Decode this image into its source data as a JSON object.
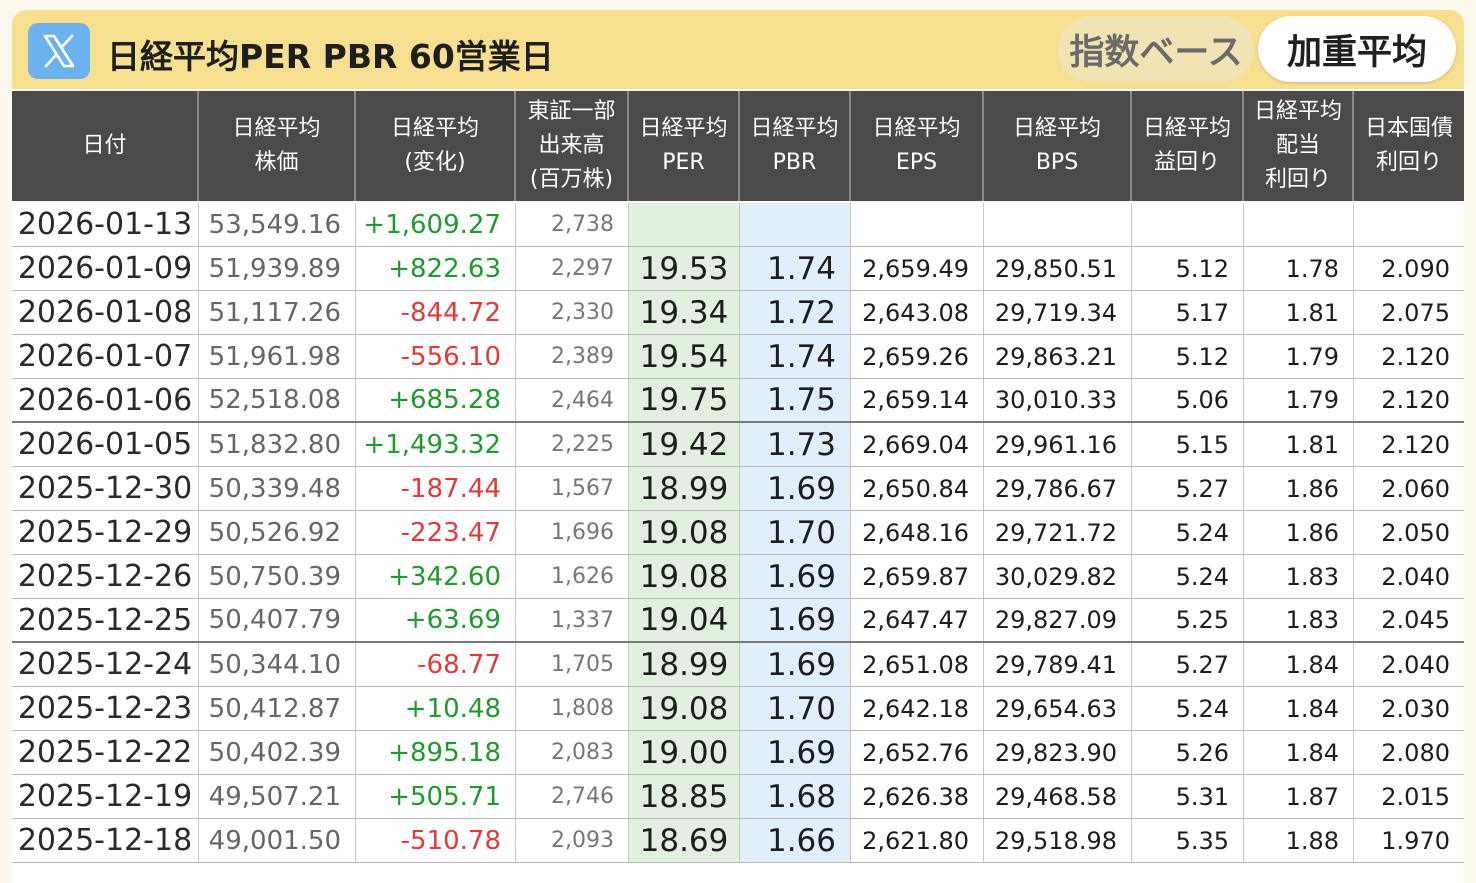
{
  "header": {
    "title": "日経平均PER PBR 60営業日",
    "tab_index": "指数ベース",
    "tab_weighted": "加重平均",
    "columns": [
      "日付",
      "日経平均\n株価",
      "日経平均\n(変化)",
      "東証一部\n出来高\n(百万株)",
      "日経平均\nPER",
      "日経平均\nPBR",
      "日経平均\nEPS",
      "日経平均\nBPS",
      "日経平均\n益回り",
      "日経平均\n配当\n利回り",
      "日本国債\n利回り"
    ]
  },
  "table": {
    "rows": [
      {
        "date": "2026-01-13",
        "price": "53,549.16",
        "change": "+1,609.27",
        "volume": "2,738",
        "per": "",
        "pbr": "",
        "eps": "",
        "bps": "",
        "earn_yield": "",
        "div_yield": "",
        "jgb": ""
      },
      {
        "date": "2026-01-09",
        "price": "51,939.89",
        "change": "+822.63",
        "volume": "2,297",
        "per": "19.53",
        "pbr": "1.74",
        "eps": "2,659.49",
        "bps": "29,850.51",
        "earn_yield": "5.12",
        "div_yield": "1.78",
        "jgb": "2.090"
      },
      {
        "date": "2026-01-08",
        "price": "51,117.26",
        "change": "-844.72",
        "volume": "2,330",
        "per": "19.34",
        "pbr": "1.72",
        "eps": "2,643.08",
        "bps": "29,719.34",
        "earn_yield": "5.17",
        "div_yield": "1.81",
        "jgb": "2.075"
      },
      {
        "date": "2026-01-07",
        "price": "51,961.98",
        "change": "-556.10",
        "volume": "2,389",
        "per": "19.54",
        "pbr": "1.74",
        "eps": "2,659.26",
        "bps": "29,863.21",
        "earn_yield": "5.12",
        "div_yield": "1.79",
        "jgb": "2.120"
      },
      {
        "date": "2026-01-06",
        "price": "52,518.08",
        "change": "+685.28",
        "volume": "2,464",
        "per": "19.75",
        "pbr": "1.75",
        "eps": "2,659.14",
        "bps": "30,010.33",
        "earn_yield": "5.06",
        "div_yield": "1.79",
        "jgb": "2.120"
      },
      {
        "date": "2026-01-05",
        "price": "51,832.80",
        "change": "+1,493.32",
        "volume": "2,225",
        "per": "19.42",
        "pbr": "1.73",
        "eps": "2,669.04",
        "bps": "29,961.16",
        "earn_yield": "5.15",
        "div_yield": "1.81",
        "jgb": "2.120"
      },
      {
        "date": "2025-12-30",
        "price": "50,339.48",
        "change": "-187.44",
        "volume": "1,567",
        "per": "18.99",
        "pbr": "1.69",
        "eps": "2,650.84",
        "bps": "29,786.67",
        "earn_yield": "5.27",
        "div_yield": "1.86",
        "jgb": "2.060"
      },
      {
        "date": "2025-12-29",
        "price": "50,526.92",
        "change": "-223.47",
        "volume": "1,696",
        "per": "19.08",
        "pbr": "1.70",
        "eps": "2,648.16",
        "bps": "29,721.72",
        "earn_yield": "5.24",
        "div_yield": "1.86",
        "jgb": "2.050"
      },
      {
        "date": "2025-12-26",
        "price": "50,750.39",
        "change": "+342.60",
        "volume": "1,626",
        "per": "19.08",
        "pbr": "1.69",
        "eps": "2,659.87",
        "bps": "30,029.82",
        "earn_yield": "5.24",
        "div_yield": "1.83",
        "jgb": "2.040"
      },
      {
        "date": "2025-12-25",
        "price": "50,407.79",
        "change": "+63.69",
        "volume": "1,337",
        "per": "19.04",
        "pbr": "1.69",
        "eps": "2,647.47",
        "bps": "29,827.09",
        "earn_yield": "5.25",
        "div_yield": "1.83",
        "jgb": "2.045"
      },
      {
        "date": "2025-12-24",
        "price": "50,344.10",
        "change": "-68.77",
        "volume": "1,705",
        "per": "18.99",
        "pbr": "1.69",
        "eps": "2,651.08",
        "bps": "29,789.41",
        "earn_yield": "5.27",
        "div_yield": "1.84",
        "jgb": "2.040"
      },
      {
        "date": "2025-12-23",
        "price": "50,412.87",
        "change": "+10.48",
        "volume": "1,808",
        "per": "19.08",
        "pbr": "1.70",
        "eps": "2,642.18",
        "bps": "29,654.63",
        "earn_yield": "5.24",
        "div_yield": "1.84",
        "jgb": "2.030"
      },
      {
        "date": "2025-12-22",
        "price": "50,402.39",
        "change": "+895.18",
        "volume": "2,083",
        "per": "19.00",
        "pbr": "1.69",
        "eps": "2,652.76",
        "bps": "29,823.90",
        "earn_yield": "5.26",
        "div_yield": "1.84",
        "jgb": "2.080"
      },
      {
        "date": "2025-12-19",
        "price": "49,507.21",
        "change": "+505.71",
        "volume": "2,746",
        "per": "18.85",
        "pbr": "1.68",
        "eps": "2,626.38",
        "bps": "29,468.58",
        "earn_yield": "5.31",
        "div_yield": "1.87",
        "jgb": "2.015"
      },
      {
        "date": "2025-12-18",
        "price": "49,001.50",
        "change": "-510.78",
        "volume": "2,093",
        "per": "18.69",
        "pbr": "1.66",
        "eps": "2,621.80",
        "bps": "29,518.98",
        "earn_yield": "5.35",
        "div_yield": "1.88",
        "jgb": "1.970"
      }
    ]
  },
  "colors": {
    "top_bar": "#f6e08f",
    "header_bg": "#4a4a4a",
    "up": "#1f9a2c",
    "down": "#e23a3a",
    "per_col": "#e2f0e0",
    "pbr_col": "#e1eefc",
    "x_logo": "#6cb2ec"
  },
  "icons": {
    "share": "x-logo-icon"
  }
}
